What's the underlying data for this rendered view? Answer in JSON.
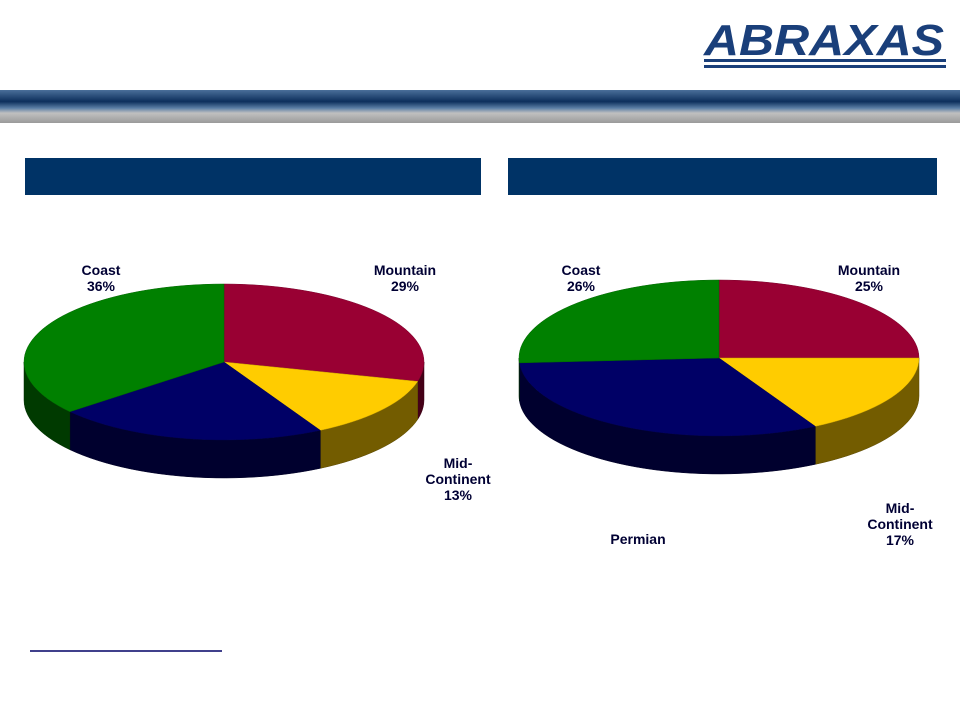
{
  "logo": "ABRAXAS",
  "chart_data": [
    {
      "type": "pie",
      "categories": [
        "Mountain",
        "Mid-Continent",
        null,
        "Coast"
      ],
      "values": [
        29,
        13,
        22,
        36
      ],
      "value_labels": [
        "29%",
        "13%",
        null,
        "36%"
      ],
      "colors": [
        "#990033",
        "#ffcc00",
        "#000066",
        "#008000"
      ]
    },
    {
      "type": "pie",
      "categories": [
        "Mountain",
        "Mid-Continent",
        "Permian",
        "Coast"
      ],
      "values": [
        25,
        17,
        32,
        26
      ],
      "value_labels": [
        "25%",
        "17%",
        null,
        "26%"
      ],
      "colors": [
        "#990033",
        "#ffcc00",
        "#000066",
        "#008000"
      ]
    }
  ]
}
